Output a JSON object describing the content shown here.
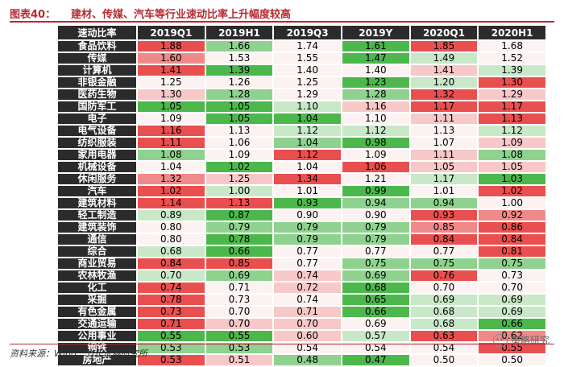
{
  "title": {
    "label": "图表40：",
    "text": "建材、传媒、汽车等行业速动比率上升幅度较高"
  },
  "table": {
    "metric_label": "速动比率",
    "columns": [
      "2019Q1",
      "2019H1",
      "2019Q3",
      "2019Y",
      "2020Q1",
      "2020H1"
    ],
    "rows": [
      {
        "name": "食品饮料",
        "values": [
          "1.88",
          "1.66",
          "1.74",
          "1.61",
          "1.85",
          "1.68"
        ],
        "tones": [
          "r3",
          "g2",
          "w0",
          "g3",
          "r3",
          "w0"
        ]
      },
      {
        "name": "传媒",
        "values": [
          "1.60",
          "1.53",
          "1.55",
          "1.47",
          "1.49",
          "1.52"
        ],
        "tones": [
          "r2",
          "w0",
          "w0",
          "g3",
          "g1",
          "w0"
        ]
      },
      {
        "name": "计算机",
        "values": [
          "1.41",
          "1.39",
          "1.40",
          "1.40",
          "1.41",
          "1.39"
        ],
        "tones": [
          "r3",
          "g3",
          "w0",
          "w0",
          "r1",
          "g1"
        ]
      },
      {
        "name": "非银金融",
        "values": [
          "1.25",
          "1.26",
          "1.25",
          "1.23",
          "1.20",
          "1.30"
        ],
        "tones": [
          "w0",
          "w0",
          "w0",
          "g3",
          "g1",
          "r3"
        ]
      },
      {
        "name": "医药生物",
        "values": [
          "1.30",
          "1.28",
          "1.29",
          "1.28",
          "1.32",
          "1.29"
        ],
        "tones": [
          "r1",
          "g2",
          "w0",
          "g2",
          "r3",
          "r1"
        ]
      },
      {
        "name": "国防军工",
        "values": [
          "1.05",
          "1.05",
          "1.10",
          "1.16",
          "1.17",
          "1.17"
        ],
        "tones": [
          "g3",
          "g3",
          "g1",
          "r1",
          "r3",
          "r3"
        ]
      },
      {
        "name": "电子",
        "values": [
          "1.09",
          "1.05",
          "1.04",
          "1.10",
          "1.11",
          "1.13"
        ],
        "tones": [
          "w0",
          "g3",
          "g3",
          "w0",
          "r1",
          "r3"
        ]
      },
      {
        "name": "电气设备",
        "values": [
          "1.16",
          "1.13",
          "1.12",
          "1.12",
          "1.13",
          "1.12"
        ],
        "tones": [
          "r3",
          "w0",
          "g1",
          "g1",
          "w0",
          "g1"
        ]
      },
      {
        "name": "纺织服装",
        "values": [
          "1.11",
          "1.06",
          "1.04",
          "0.98",
          "1.07",
          "1.09"
        ],
        "tones": [
          "r3",
          "w0",
          "g2",
          "g3",
          "w0",
          "r1"
        ]
      },
      {
        "name": "家用电器",
        "values": [
          "1.08",
          "1.09",
          "1.12",
          "1.09",
          "1.11",
          "1.08"
        ],
        "tones": [
          "g2",
          "w0",
          "r3",
          "w0",
          "r1",
          "g2"
        ]
      },
      {
        "name": "机械设备",
        "values": [
          "1.04",
          "1.02",
          "1.04",
          "1.06",
          "1.05",
          "1.05"
        ],
        "tones": [
          "w0",
          "g3",
          "w0",
          "r3",
          "r1",
          "r1"
        ]
      },
      {
        "name": "休闲服务",
        "values": [
          "1.32",
          "1.25",
          "1.34",
          "1.21",
          "1.17",
          "1.03"
        ],
        "tones": [
          "r2",
          "r1",
          "r3",
          "w0",
          "g1",
          "g3"
        ]
      },
      {
        "name": "汽车",
        "values": [
          "1.02",
          "1.00",
          "1.01",
          "0.99",
          "1.01",
          "1.02"
        ],
        "tones": [
          "r3",
          "g1",
          "w0",
          "g3",
          "w0",
          "r3"
        ]
      },
      {
        "name": "建筑材料",
        "values": [
          "1.14",
          "1.13",
          "0.93",
          "0.94",
          "0.94",
          "1.00"
        ],
        "tones": [
          "r3",
          "r3",
          "g3",
          "g2",
          "g2",
          "w0"
        ]
      },
      {
        "name": "轻工制造",
        "values": [
          "0.89",
          "0.87",
          "0.90",
          "0.90",
          "0.93",
          "0.92"
        ],
        "tones": [
          "g1",
          "g3",
          "w0",
          "w0",
          "r3",
          "r2"
        ]
      },
      {
        "name": "建筑装饰",
        "values": [
          "0.80",
          "0.79",
          "0.79",
          "0.79",
          "0.85",
          "0.86"
        ],
        "tones": [
          "w0",
          "g2",
          "g2",
          "g2",
          "r2",
          "r3"
        ]
      },
      {
        "name": "通信",
        "values": [
          "0.80",
          "0.78",
          "0.79",
          "0.79",
          "0.84",
          "0.84"
        ],
        "tones": [
          "w0",
          "g3",
          "g2",
          "g2",
          "r3",
          "r3"
        ]
      },
      {
        "name": "综合",
        "values": [
          "0.68",
          "0.66",
          "0.77",
          "0.77",
          "0.77",
          "0.81"
        ],
        "tones": [
          "g1",
          "g3",
          "w0",
          "w0",
          "w0",
          "r3"
        ]
      },
      {
        "name": "商业贸易",
        "values": [
          "0.84",
          "0.85",
          "0.77",
          "0.75",
          "0.75",
          "0.75"
        ],
        "tones": [
          "r3",
          "r3",
          "w0",
          "g2",
          "g2",
          "g2"
        ]
      },
      {
        "name": "农林牧渔",
        "values": [
          "0.70",
          "0.69",
          "0.74",
          "0.69",
          "0.76",
          "0.73"
        ],
        "tones": [
          "g1",
          "g2",
          "r1",
          "g2",
          "r3",
          "w0"
        ]
      },
      {
        "name": "化工",
        "values": [
          "0.74",
          "0.71",
          "0.72",
          "0.68",
          "0.70",
          "0.70"
        ],
        "tones": [
          "r3",
          "w0",
          "r1",
          "g3",
          "w0",
          "w0"
        ]
      },
      {
        "name": "采掘",
        "values": [
          "0.78",
          "0.73",
          "0.74",
          "0.65",
          "0.69",
          "0.69"
        ],
        "tones": [
          "r3",
          "w0",
          "w0",
          "g3",
          "g1",
          "g1"
        ]
      },
      {
        "name": "有色金属",
        "values": [
          "0.73",
          "0.70",
          "0.71",
          "0.66",
          "0.68",
          "0.69"
        ],
        "tones": [
          "r3",
          "w0",
          "r1",
          "g3",
          "g1",
          "g1"
        ]
      },
      {
        "name": "交通运输",
        "values": [
          "0.71",
          "0.70",
          "0.70",
          "0.69",
          "0.68",
          "0.66"
        ],
        "tones": [
          "r3",
          "r1",
          "r1",
          "w0",
          "g1",
          "g3"
        ]
      },
      {
        "name": "公用事业",
        "values": [
          "0.55",
          "0.55",
          "0.60",
          "0.57",
          "0.63",
          "0.62"
        ],
        "tones": [
          "g3",
          "g3",
          "r1",
          "g1",
          "r3",
          "r2"
        ]
      },
      {
        "name": "钢铁",
        "values": [
          "0.53",
          "0.53",
          "0.54",
          "0.54",
          "0.54",
          "0.55"
        ],
        "tones": [
          "g2",
          "g2",
          "w0",
          "w0",
          "w0",
          "r3"
        ]
      },
      {
        "name": "房地产",
        "values": [
          "0.53",
          "0.51",
          "0.48",
          "0.47",
          "0.50",
          "0.50"
        ],
        "tones": [
          "r3",
          "r1",
          "g2",
          "g3",
          "w0",
          "w0"
        ]
      }
    ]
  },
  "tone_colors": {
    "r3": "#ea4f4f",
    "r2": "#f08a8a",
    "r1": "#f8c8c8",
    "w0": "#fcf2f2",
    "g1": "#c8e8c8",
    "g2": "#8fd28f",
    "g3": "#4cb84c"
  },
  "source": "资料来源：Wind、方正证券研究所",
  "watermark": "策略研究"
}
